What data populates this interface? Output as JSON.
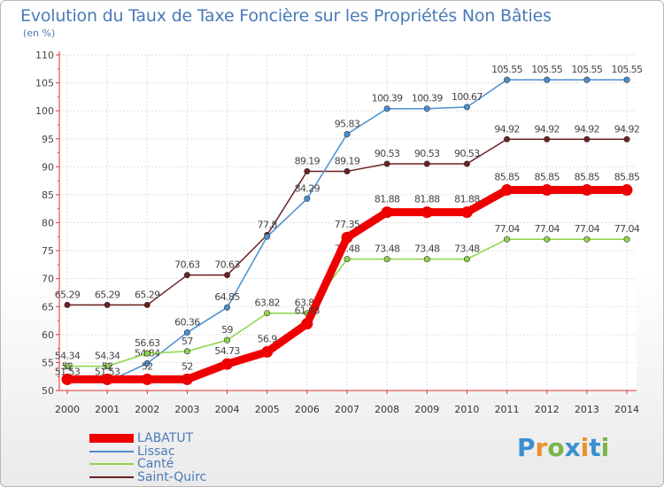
{
  "title": "Evolution du Taux de Taxe Foncière sur les Propriétés Non Bâties",
  "unit_label": "(en %)",
  "brand": {
    "letters": [
      "P",
      "r",
      "o",
      "x",
      "i",
      "t",
      "i"
    ],
    "colors": [
      "#3a8fd0",
      "#e8932a",
      "#7ab648",
      "#3a8fd0",
      "#e8932a",
      "#3a8fd0",
      "#7ab648"
    ]
  },
  "chart_data": {
    "type": "line",
    "x": [
      "2000",
      "2001",
      "2002",
      "2003",
      "2004",
      "2005",
      "2006",
      "2007",
      "2008",
      "2009",
      "2010",
      "2011",
      "2012",
      "2013",
      "2014"
    ],
    "ylim": [
      50,
      110
    ],
    "yticks": [
      50,
      55,
      60,
      65,
      70,
      75,
      80,
      85,
      90,
      95,
      100,
      105,
      110
    ],
    "grid": true,
    "legend_position": "bottom-left",
    "series": [
      {
        "name": "Saint-Quirc",
        "color": "#6b2121",
        "values": [
          65.29,
          65.29,
          65.29,
          70.63,
          70.63,
          77.8,
          89.19,
          89.19,
          90.53,
          90.53,
          90.53,
          94.92,
          94.92,
          94.92,
          94.92
        ],
        "labels": [
          "65.29",
          "65.29",
          "65.29",
          "70.63",
          "70.63",
          "77.8",
          "89.19",
          "89.19",
          "90.53",
          "90.53",
          "90.53",
          "94.92",
          "94.92",
          "94.92",
          "94.92"
        ]
      },
      {
        "name": "Lissac",
        "color": "#4a8fd0",
        "values": [
          51.53,
          51.53,
          54.84,
          60.36,
          64.85,
          77.5,
          84.29,
          95.83,
          100.39,
          100.39,
          100.67,
          105.55,
          105.55,
          105.55,
          105.55
        ],
        "labels": [
          "51.53",
          "51.53",
          "54.84",
          "60.36",
          "64.85",
          "",
          "84.29",
          "95.83",
          "100.39",
          "100.39",
          "100.67",
          "105.55",
          "105.55",
          "105.55",
          "105.55"
        ]
      },
      {
        "name": "Canté",
        "color": "#8fd44a",
        "values": [
          54.34,
          54.34,
          56.63,
          57,
          59,
          63.82,
          63.82,
          73.48,
          73.48,
          73.48,
          73.48,
          77.04,
          77.04,
          77.04,
          77.04
        ],
        "labels": [
          "54.34",
          "54.34",
          "56.63",
          "57",
          "59",
          "63.82",
          "63.82",
          "73.48",
          "73.48",
          "73.48",
          "73.48",
          "77.04",
          "77.04",
          "77.04",
          "77.04"
        ]
      },
      {
        "name": "LABATUT",
        "color": "#ee0000",
        "values": [
          52,
          52,
          52,
          52,
          54.73,
          56.9,
          61.93,
          77.35,
          81.88,
          81.88,
          81.88,
          85.85,
          85.85,
          85.85,
          85.85
        ],
        "labels": [
          "52",
          "52",
          "52",
          "52",
          "54.73",
          "56.9",
          "61.93",
          "77.35",
          "81.88",
          "81.88",
          "81.88",
          "85.85",
          "85.85",
          "85.85",
          "85.85"
        ]
      }
    ],
    "legend_order": [
      "LABATUT",
      "Lissac",
      "Canté",
      "Saint-Quirc"
    ]
  }
}
